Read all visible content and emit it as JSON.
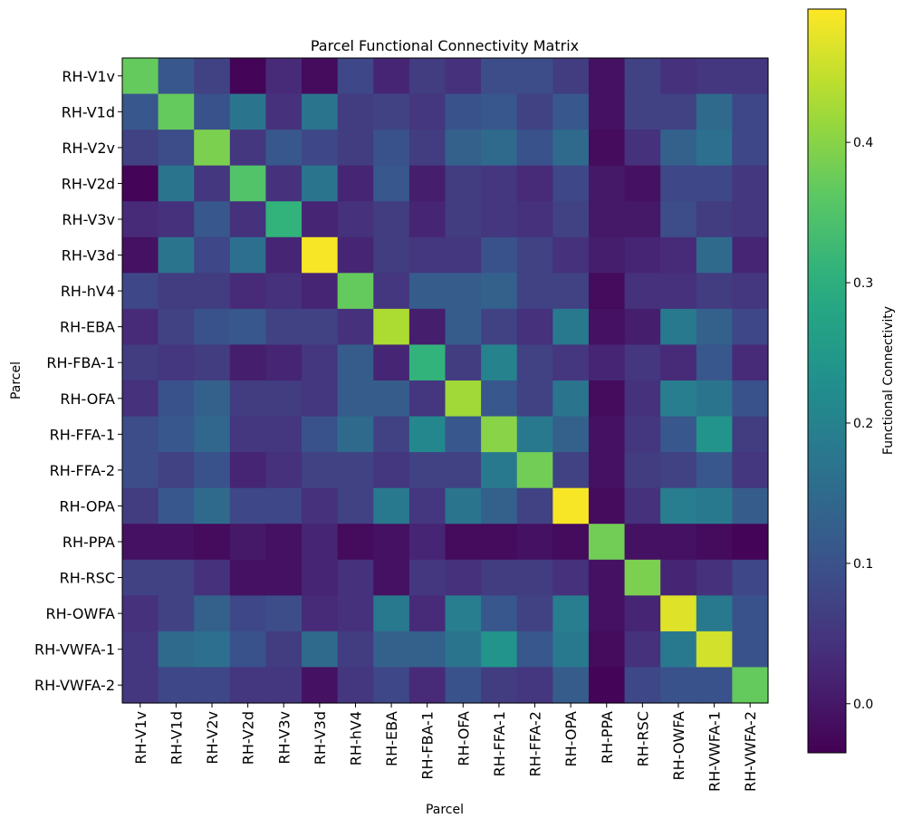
{
  "chart_data": {
    "type": "heatmap",
    "title": "Parcel Functional Connectivity Matrix",
    "xlabel": "Parcel",
    "ylabel": "Parcel",
    "colorbar_label": "Functional Connectivity",
    "colormap": "viridis",
    "vmin": -0.035,
    "vmax": 0.495,
    "colorbar_ticks": [
      0.0,
      0.1,
      0.2,
      0.3,
      0.4
    ],
    "colorbar_tick_labels": [
      "0.0",
      "0.1",
      "0.2",
      "0.3",
      "0.4"
    ],
    "labels": [
      "RH-V1v",
      "RH-V1d",
      "RH-V2v",
      "RH-V2d",
      "RH-V3v",
      "RH-V3d",
      "RH-hV4",
      "RH-EBA",
      "RH-FBA-1",
      "RH-OFA",
      "RH-FFA-1",
      "RH-FFA-2",
      "RH-OPA",
      "RH-PPA",
      "RH-RSC",
      "RH-OWFA",
      "RH-VWFA-1",
      "RH-VWFA-2"
    ],
    "matrix": [
      [
        0.37,
        0.11,
        0.07,
        -0.03,
        0.03,
        -0.02,
        0.08,
        0.02,
        0.06,
        0.04,
        0.09,
        0.09,
        0.06,
        -0.01,
        0.07,
        0.04,
        0.05,
        0.05
      ],
      [
        0.11,
        0.37,
        0.1,
        0.17,
        0.04,
        0.17,
        0.06,
        0.07,
        0.05,
        0.1,
        0.11,
        0.07,
        0.11,
        -0.01,
        0.07,
        0.07,
        0.15,
        0.08
      ],
      [
        0.07,
        0.09,
        0.39,
        0.05,
        0.11,
        0.08,
        0.06,
        0.1,
        0.06,
        0.13,
        0.15,
        0.1,
        0.15,
        -0.02,
        0.04,
        0.13,
        0.16,
        0.08
      ],
      [
        -0.03,
        0.17,
        0.05,
        0.35,
        0.04,
        0.17,
        0.02,
        0.11,
        0.01,
        0.06,
        0.05,
        0.03,
        0.08,
        0.0,
        -0.01,
        0.08,
        0.08,
        0.05
      ],
      [
        0.03,
        0.04,
        0.11,
        0.04,
        0.31,
        0.02,
        0.04,
        0.06,
        0.02,
        0.06,
        0.05,
        0.04,
        0.07,
        0.0,
        0.0,
        0.09,
        0.06,
        0.05
      ],
      [
        -0.01,
        0.17,
        0.08,
        0.16,
        0.02,
        0.49,
        0.02,
        0.06,
        0.05,
        0.05,
        0.1,
        0.07,
        0.04,
        0.01,
        0.02,
        0.03,
        0.15,
        0.02
      ],
      [
        0.08,
        0.06,
        0.06,
        0.03,
        0.04,
        0.02,
        0.37,
        0.05,
        0.12,
        0.12,
        0.13,
        0.07,
        0.07,
        -0.02,
        0.04,
        0.04,
        0.06,
        0.05
      ],
      [
        0.03,
        0.07,
        0.1,
        0.11,
        0.07,
        0.07,
        0.04,
        0.43,
        0.01,
        0.12,
        0.07,
        0.04,
        0.18,
        -0.01,
        0.01,
        0.18,
        0.13,
        0.08
      ],
      [
        0.06,
        0.05,
        0.06,
        0.01,
        0.02,
        0.05,
        0.12,
        0.02,
        0.31,
        0.06,
        0.2,
        0.07,
        0.05,
        0.02,
        0.05,
        0.03,
        0.11,
        0.03
      ],
      [
        0.04,
        0.1,
        0.13,
        0.06,
        0.06,
        0.05,
        0.12,
        0.12,
        0.05,
        0.42,
        0.11,
        0.07,
        0.17,
        -0.02,
        0.04,
        0.19,
        0.17,
        0.1
      ],
      [
        0.09,
        0.11,
        0.14,
        0.05,
        0.05,
        0.1,
        0.15,
        0.07,
        0.21,
        0.11,
        0.4,
        0.18,
        0.13,
        -0.01,
        0.05,
        0.11,
        0.24,
        0.06
      ],
      [
        0.09,
        0.07,
        0.1,
        0.02,
        0.04,
        0.07,
        0.07,
        0.05,
        0.07,
        0.07,
        0.18,
        0.38,
        0.07,
        -0.01,
        0.06,
        0.07,
        0.11,
        0.05
      ],
      [
        0.06,
        0.11,
        0.15,
        0.08,
        0.08,
        0.04,
        0.07,
        0.18,
        0.05,
        0.17,
        0.13,
        0.07,
        0.49,
        -0.02,
        0.04,
        0.19,
        0.18,
        0.12
      ],
      [
        -0.01,
        -0.01,
        -0.02,
        0.0,
        -0.01,
        0.02,
        -0.02,
        -0.01,
        0.02,
        -0.02,
        -0.02,
        -0.01,
        -0.02,
        0.38,
        -0.01,
        -0.01,
        -0.02,
        -0.03
      ],
      [
        0.07,
        0.07,
        0.04,
        -0.01,
        -0.01,
        0.02,
        0.04,
        -0.01,
        0.05,
        0.04,
        0.06,
        0.06,
        0.04,
        -0.01,
        0.39,
        0.02,
        0.04,
        0.08
      ],
      [
        0.04,
        0.07,
        0.13,
        0.08,
        0.09,
        0.03,
        0.04,
        0.18,
        0.03,
        0.19,
        0.11,
        0.07,
        0.19,
        -0.01,
        0.02,
        0.47,
        0.18,
        0.1
      ],
      [
        0.05,
        0.15,
        0.16,
        0.1,
        0.06,
        0.15,
        0.06,
        0.13,
        0.13,
        0.17,
        0.24,
        0.11,
        0.18,
        -0.02,
        0.04,
        0.18,
        0.46,
        0.1
      ],
      [
        0.05,
        0.08,
        0.08,
        0.05,
        0.05,
        -0.01,
        0.05,
        0.08,
        0.03,
        0.1,
        0.06,
        0.05,
        0.12,
        -0.03,
        0.08,
        0.1,
        0.1,
        0.37
      ]
    ]
  }
}
